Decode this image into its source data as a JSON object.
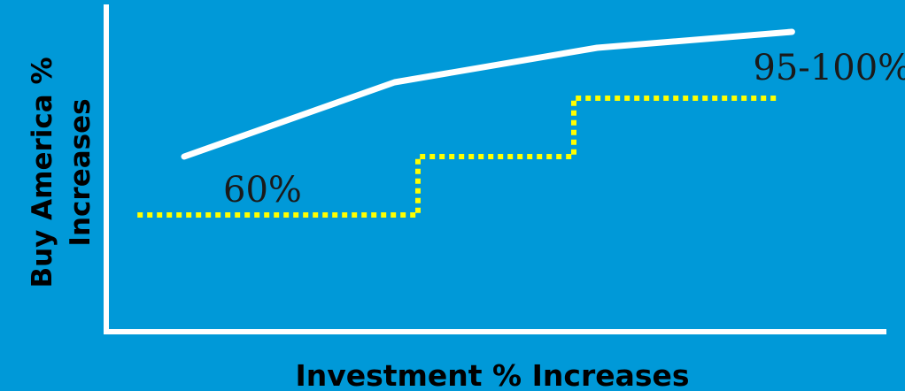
{
  "chart_data": {
    "type": "line",
    "title": "",
    "xlabel": "Investment % Increases",
    "ylabel": "Buy America % Increases",
    "ylabel_lines": [
      "Buy America %",
      "Increases"
    ],
    "grid": false,
    "legend": "none",
    "colors": {
      "background": "#0099d8",
      "axis": "#ffffff",
      "curve": "#ffffff",
      "step": "#ffff00",
      "text": "#000000"
    },
    "series": [
      {
        "style": "solid",
        "points": [
          [
            1.0,
            6.6
          ],
          [
            3.7,
            9.4
          ],
          [
            6.3,
            10.7
          ],
          [
            8.8,
            11.3
          ]
        ]
      },
      {
        "style": "dotted",
        "points": [
          [
            0.4,
            4.4
          ],
          [
            4.0,
            4.4
          ],
          [
            4.0,
            6.6
          ],
          [
            6.0,
            6.6
          ],
          [
            6.0,
            8.8
          ],
          [
            8.6,
            8.8
          ]
        ]
      }
    ],
    "annotations": [
      {
        "text": "60%",
        "x": 1.5,
        "y": 4.9
      },
      {
        "text": "95-100%",
        "x": 8.3,
        "y": 9.5
      }
    ]
  }
}
